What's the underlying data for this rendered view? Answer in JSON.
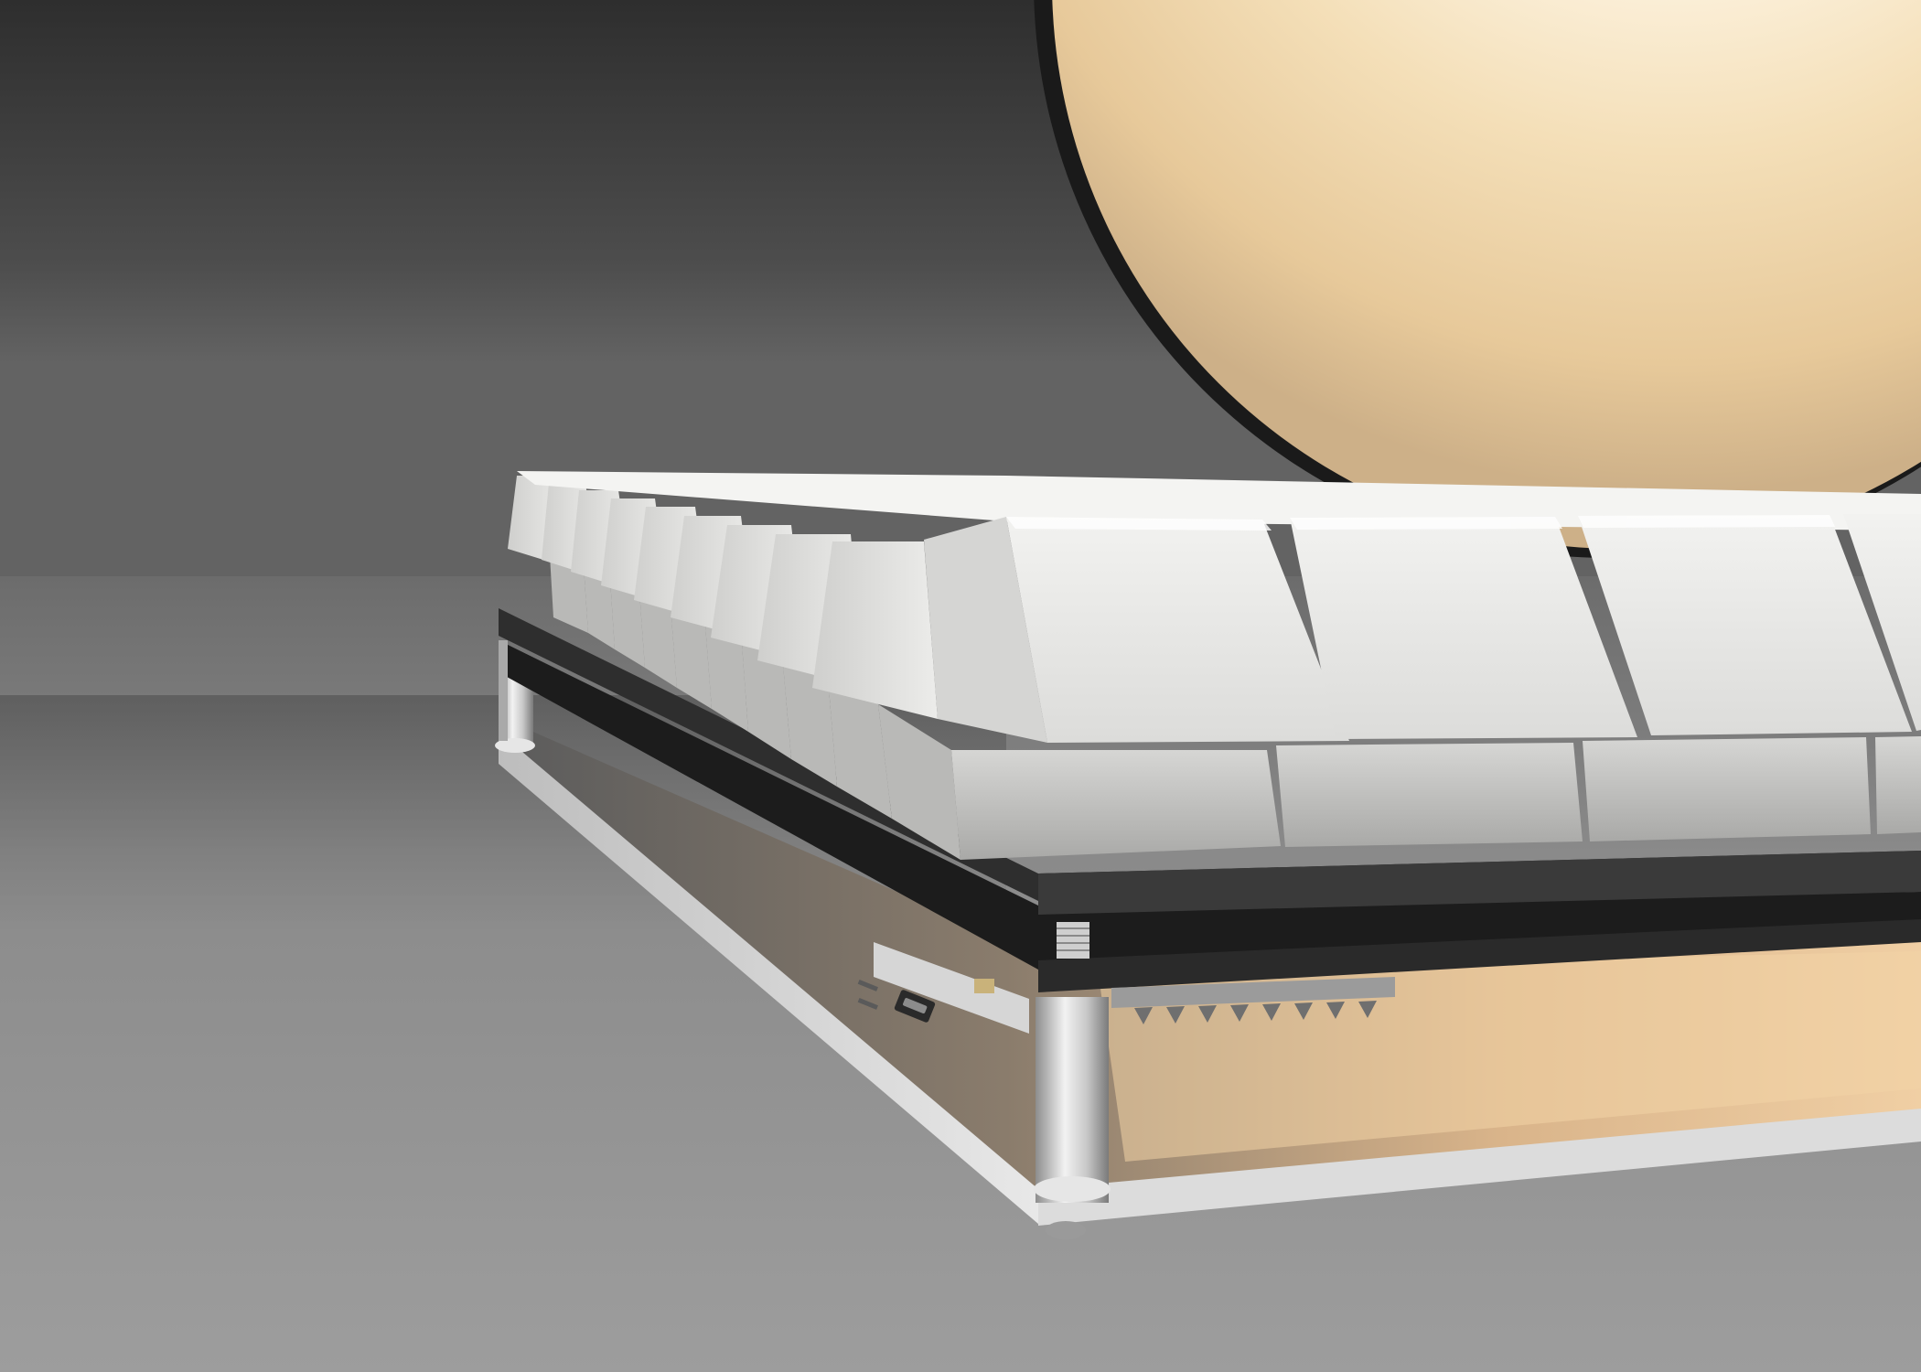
{
  "scene": {
    "subject": "keyboard-render",
    "key_count_front_row": 4,
    "key_count_side_column": 10,
    "standoff_count": 2,
    "colors": {
      "wall_dark": "#3d3d3d",
      "wall_mid": "#5e5e5e",
      "floor": "#8e8e8e",
      "floor_light": "#a8a8a8",
      "lamp_core": "#ffffff",
      "lamp_warm": "#f6dfb6",
      "keycap": "#e6e6e4",
      "keycap_shadow": "#b5b5b3",
      "switch_body": "#c9c9c7",
      "pcb": "#1f1f1f",
      "case_plate": "#c4c4c4",
      "case_plate_glow": "#e9c08e",
      "standoff_metal": "#d9d9d9",
      "port": "#2a2a2a"
    }
  }
}
